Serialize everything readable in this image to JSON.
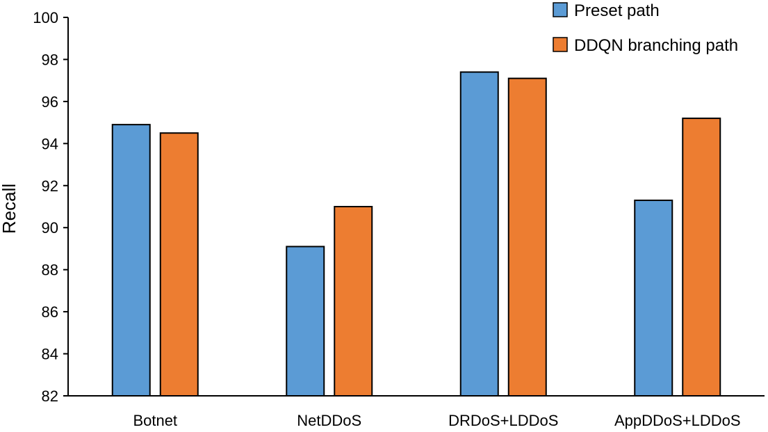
{
  "chart_data": {
    "type": "bar",
    "title": "",
    "xlabel": "",
    "ylabel": "Recall",
    "ylim": [
      82,
      100
    ],
    "yticks": [
      82,
      84,
      86,
      88,
      90,
      92,
      94,
      96,
      98,
      100
    ],
    "grid": false,
    "legend_position": "top-right",
    "categories": [
      "Botnet",
      "NetDDoS",
      "DRDoS+LDDoS",
      "AppDDoS+LDDoS"
    ],
    "series": [
      {
        "name": "Preset path",
        "color": "#5b9bd5",
        "values": [
          94.9,
          89.1,
          97.4,
          91.3
        ]
      },
      {
        "name": "DDQN branching path",
        "color": "#ed7d31",
        "values": [
          94.5,
          91.0,
          97.1,
          95.2
        ]
      }
    ]
  }
}
